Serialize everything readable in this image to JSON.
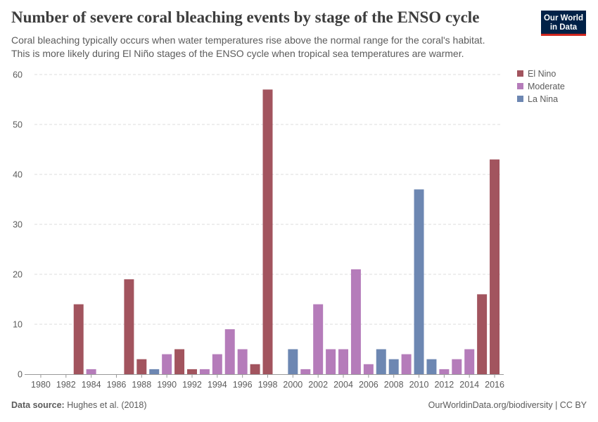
{
  "header": {
    "title": "Number of severe coral bleaching events by stage of the ENSO cycle",
    "subtitle_lines": [
      "Coral bleaching typically occurs when water temperatures rise above the normal range for the coral's habitat.",
      "This is more likely during El Niño stages of the ENSO cycle when tropical sea temperatures are warmer."
    ],
    "logo_lines": [
      "Our World",
      "in Data"
    ]
  },
  "footer": {
    "source_label": "Data source:",
    "source_value": "Hughes et al. (2018)",
    "credit": "OurWorldinData.org/biodiversity | CC BY"
  },
  "colors": {
    "El Nino": "#a2545e",
    "Moderate": "#b57cba",
    "La Nina": "#6d87b2",
    "grid": "#dddddd",
    "axis": "#999999"
  },
  "chart_data": {
    "type": "bar",
    "xlim": [
      1980,
      2016
    ],
    "ylim": [
      0,
      60
    ],
    "yticks": [
      0,
      10,
      20,
      30,
      40,
      50,
      60
    ],
    "xticks": [
      1980,
      1982,
      1984,
      1986,
      1988,
      1990,
      1992,
      1994,
      1996,
      1998,
      2000,
      2002,
      2004,
      2006,
      2008,
      2010,
      2012,
      2014,
      2016
    ],
    "grid": "horizontal dashed",
    "legend": {
      "position": "top-right",
      "entries": [
        "El Nino",
        "Moderate",
        "La Nina"
      ]
    },
    "categories": [
      1983,
      1984,
      1987,
      1988,
      1989,
      1990,
      1991,
      1992,
      1993,
      1994,
      1995,
      1996,
      1997,
      1998,
      2000,
      2001,
      2002,
      2003,
      2004,
      2005,
      2006,
      2007,
      2008,
      2009,
      2010,
      2011,
      2012,
      2013,
      2014,
      2015,
      2016
    ],
    "values": [
      14,
      1,
      19,
      3,
      1,
      4,
      5,
      1,
      1,
      4,
      9,
      5,
      2,
      57,
      5,
      1,
      14,
      5,
      5,
      21,
      2,
      5,
      3,
      4,
      37,
      3,
      1,
      3,
      5,
      16,
      43
    ],
    "stages": [
      "El Nino",
      "Moderate",
      "El Nino",
      "El Nino",
      "La Nina",
      "Moderate",
      "El Nino",
      "El Nino",
      "Moderate",
      "Moderate",
      "Moderate",
      "Moderate",
      "El Nino",
      "El Nino",
      "La Nina",
      "Moderate",
      "Moderate",
      "Moderate",
      "Moderate",
      "Moderate",
      "Moderate",
      "La Nina",
      "La Nina",
      "Moderate",
      "La Nina",
      "La Nina",
      "Moderate",
      "Moderate",
      "Moderate",
      "El Nino",
      "El Nino"
    ]
  }
}
